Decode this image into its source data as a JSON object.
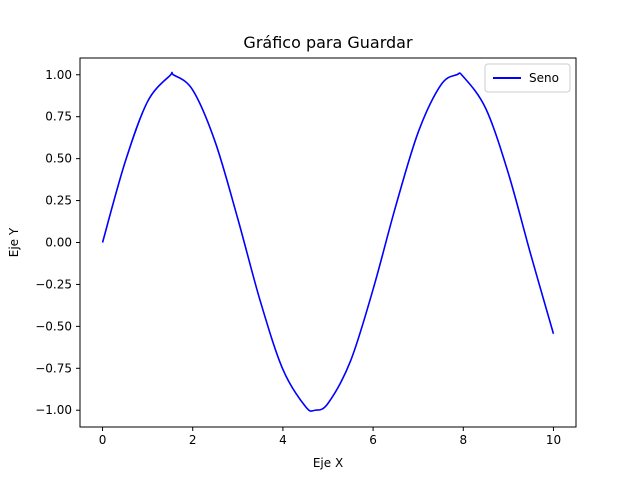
{
  "chart_data": {
    "type": "line",
    "title": "Gráfico para Guardar",
    "xlabel": "Eje X",
    "ylabel": "Eje Y",
    "xlim": [
      -0.5,
      10.5
    ],
    "ylim": [
      -1.1,
      1.1
    ],
    "x_ticks": [
      0,
      2,
      4,
      6,
      8,
      10
    ],
    "x_tick_labels": [
      "0",
      "2",
      "4",
      "6",
      "8",
      "10"
    ],
    "y_ticks": [
      -1.0,
      -0.75,
      -0.5,
      -0.25,
      0.0,
      0.25,
      0.5,
      0.75,
      1.0
    ],
    "y_tick_labels": [
      "−1.00",
      "−0.75",
      "−0.50",
      "−0.25",
      "0.00",
      "0.25",
      "0.50",
      "0.75",
      "1.00"
    ],
    "grid": false,
    "legend_position": "upper right",
    "series": [
      {
        "name": "Seno",
        "color": "#0000ff",
        "x": [
          0,
          0.5,
          1,
          1.5,
          1.5708,
          2,
          2.5,
          3,
          3.5,
          4,
          4.5,
          4.7124,
          5,
          5.5,
          6,
          6.5,
          7,
          7.5,
          7.854,
          8,
          8.5,
          9,
          9.5,
          10
        ],
        "y": [
          0.0,
          0.479,
          0.841,
          0.997,
          1.0,
          0.909,
          0.598,
          0.141,
          -0.351,
          -0.757,
          -0.978,
          -1.0,
          -0.959,
          -0.706,
          -0.279,
          0.215,
          0.657,
          0.938,
          1.0,
          0.989,
          0.798,
          0.412,
          -0.075,
          -0.544
        ]
      }
    ]
  }
}
